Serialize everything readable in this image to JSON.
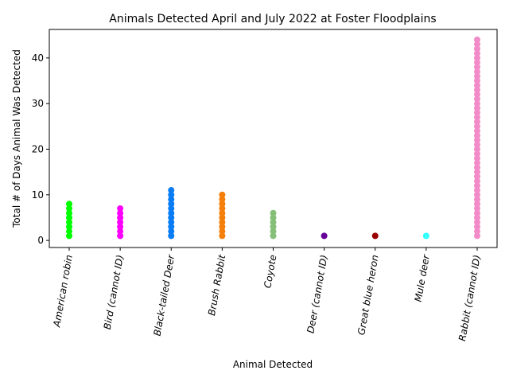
{
  "chart_data": {
    "type": "strip",
    "title": "Animals Detected April and July 2022 at Foster Floodplains",
    "x_label": "Animal Detected",
    "y_label": "Total # of Days Animal Was Detected",
    "categories": [
      "American robin",
      "Bird (cannot ID)",
      "Black-tailed Deer",
      "Brush Rabbit",
      "Coyote",
      "Deer (cannot ID)",
      "Great blue heron",
      "Mule deer",
      "Rabbit (cannot ID)"
    ],
    "values": [
      [
        1,
        2,
        3,
        4,
        5,
        6,
        7,
        8
      ],
      [
        1,
        2,
        3,
        4,
        5,
        6,
        7
      ],
      [
        1,
        2,
        3,
        4,
        5,
        6,
        7,
        8,
        9,
        10,
        11
      ],
      [
        1,
        2,
        3,
        4,
        5,
        6,
        7,
        8,
        9,
        10
      ],
      [
        1,
        2,
        3,
        4,
        5,
        6
      ],
      [
        1
      ],
      [
        1
      ],
      [
        1
      ],
      [
        1,
        2,
        3,
        4,
        5,
        6,
        7,
        8,
        9,
        10,
        11,
        12,
        13,
        14,
        15,
        16,
        17,
        18,
        19,
        20,
        21,
        22,
        23,
        24,
        25,
        26,
        27,
        28,
        29,
        30,
        31,
        32,
        33,
        34,
        35,
        36,
        37,
        38,
        39,
        40,
        41,
        42,
        43,
        44
      ]
    ],
    "colors": [
      "#00ff00",
      "#ff00ff",
      "#0a7cf5",
      "#f57f0b",
      "#86bf77",
      "#660099",
      "#990000",
      "#33ffff",
      "#f28cc8"
    ],
    "ylim": [
      -1.55,
      46.25
    ],
    "yticks": [
      0,
      10,
      20,
      30,
      40
    ]
  }
}
